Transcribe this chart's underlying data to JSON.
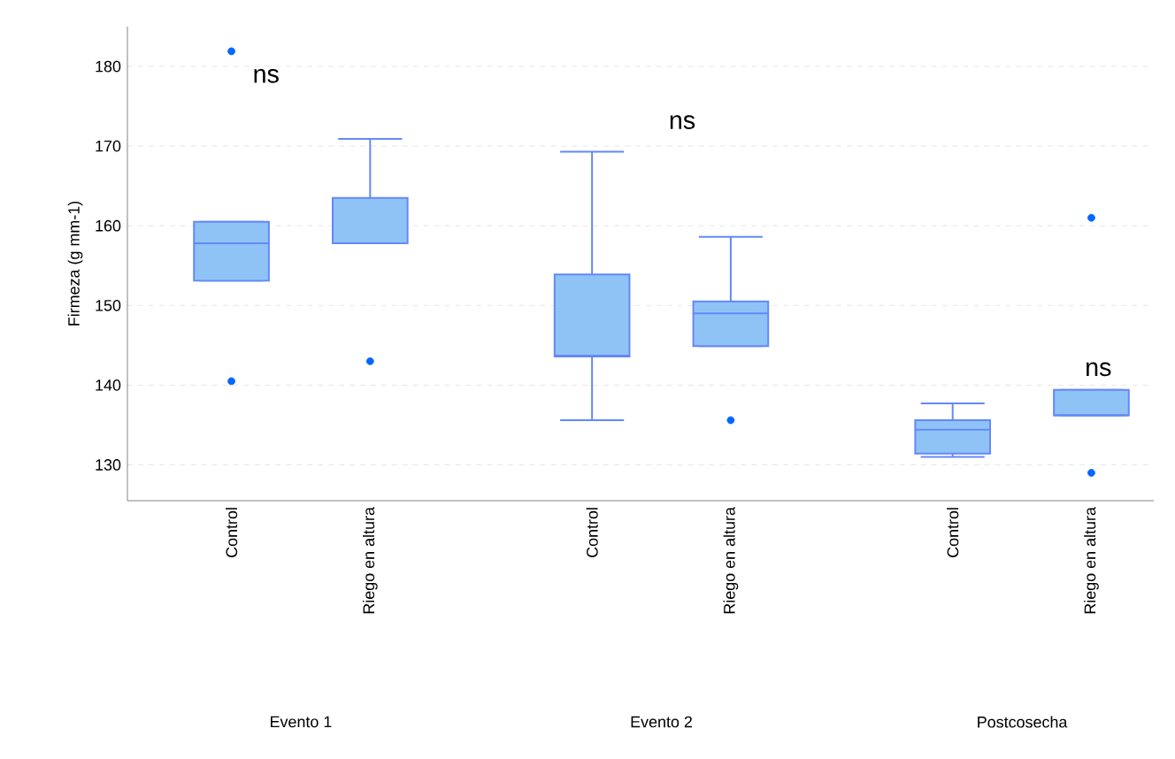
{
  "chart_data": {
    "type": "box",
    "ylabel": "Firmeza (g mm-1)",
    "categories": [
      "Control",
      "Riego en altura",
      "Control",
      "Riego en altura",
      "Control",
      "Riego en altura"
    ],
    "boxes": [
      {
        "low": 153.1,
        "q1": 153.1,
        "median": 157.8,
        "q3": 160.5,
        "high": 160.5,
        "outliers": [
          181.9,
          140.5
        ]
      },
      {
        "low": 157.8,
        "q1": 157.8,
        "median": 157.8,
        "q3": 163.5,
        "high": 170.9,
        "outliers": [
          143.0
        ]
      },
      {
        "low": 135.6,
        "q1": 143.6,
        "median": 143.7,
        "q3": 153.9,
        "high": 169.3
      },
      {
        "low": 144.9,
        "q1": 144.9,
        "median": 149.0,
        "q3": 150.5,
        "high": 158.6,
        "outliers": [
          135.6
        ]
      },
      {
        "low": 131.0,
        "q1": 131.4,
        "median": 134.4,
        "q3": 135.6,
        "high": 137.7
      },
      {
        "low": 136.2,
        "q1": 136.2,
        "median": 136.2,
        "q3": 139.4,
        "high": 139.4,
        "outliers": [
          161.0,
          129.0
        ]
      }
    ],
    "color": "#8fc3f5",
    "ylim": [
      125.5,
      185
    ],
    "yticks": [
      130,
      140,
      150,
      160,
      170,
      180
    ],
    "grid": "y",
    "annotations": [
      "ns",
      "ns",
      "ns",
      "Evento 1",
      "Evento 2",
      "Postcosecha"
    ]
  }
}
